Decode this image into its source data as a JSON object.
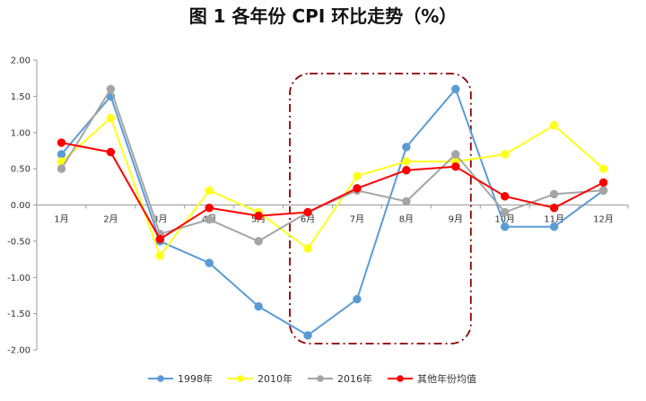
{
  "chart_data": {
    "type": "line",
    "title": "图 1   各年份 CPI 环比走势（%）",
    "xlabel": "",
    "ylabel": "",
    "categories": [
      "1月",
      "2月",
      "3月",
      "4月",
      "5月",
      "6月",
      "7月",
      "8月",
      "9月",
      "10月",
      "11月",
      "12月"
    ],
    "y_ticks": [
      "2.00",
      "1.50",
      "1.00",
      "0.50",
      "0.00",
      "-0.50",
      "-1.00",
      "-1.50",
      "-2.00"
    ],
    "ylim": [
      -2.0,
      2.0
    ],
    "grid": false,
    "legend_position": "bottom",
    "highlight_range": [
      "6月",
      "9月"
    ],
    "series": [
      {
        "name": "1998年",
        "color": "#5B9BD5",
        "values": [
          0.7,
          1.5,
          -0.5,
          -0.8,
          -1.4,
          -1.8,
          -1.3,
          0.8,
          1.6,
          -0.3,
          -0.3,
          0.2
        ]
      },
      {
        "name": "2010年",
        "color": "#FFFF1A",
        "values": [
          0.6,
          1.2,
          -0.7,
          0.2,
          -0.1,
          -0.6,
          0.4,
          0.6,
          0.6,
          0.7,
          1.1,
          0.5
        ]
      },
      {
        "name": "2016年",
        "color": "#A5A5A5",
        "values": [
          0.5,
          1.6,
          -0.4,
          -0.2,
          -0.5,
          -0.1,
          0.2,
          0.05,
          0.7,
          -0.1,
          0.15,
          0.2
        ]
      },
      {
        "name": "其他年份均值",
        "color": "#FF0000",
        "values": [
          0.86,
          0.73,
          -0.47,
          -0.04,
          -0.15,
          -0.1,
          0.23,
          0.48,
          0.53,
          0.12,
          -0.04,
          0.31
        ]
      }
    ],
    "highlight_color": "#8B0000"
  }
}
